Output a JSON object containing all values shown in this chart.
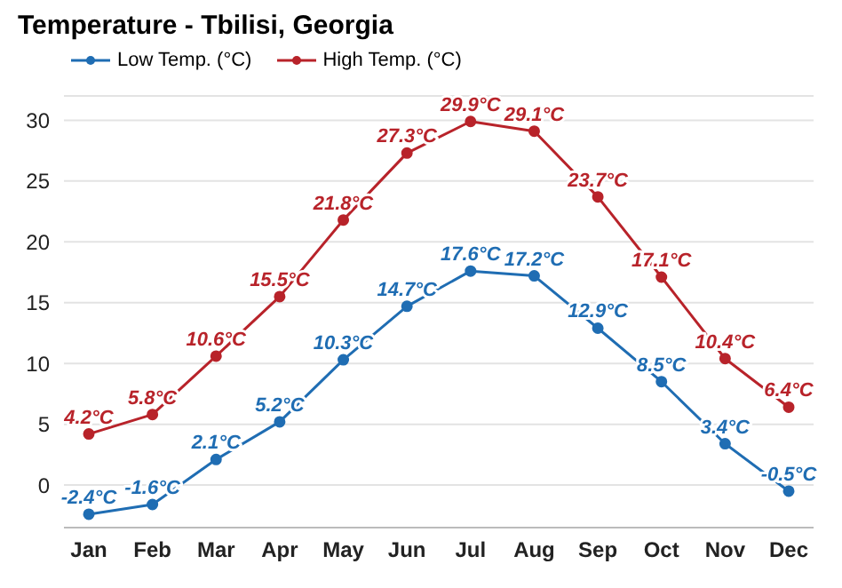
{
  "chart_data": {
    "type": "line",
    "title": "Temperature - Tbilisi, Georgia",
    "categories": [
      "Jan",
      "Feb",
      "Mar",
      "Apr",
      "May",
      "Jun",
      "Jul",
      "Aug",
      "Sep",
      "Oct",
      "Nov",
      "Dec"
    ],
    "series": [
      {
        "name": "Low Temp. (°C)",
        "color": "#1f6db3",
        "values": [
          -2.4,
          -1.6,
          2.1,
          5.2,
          10.3,
          14.7,
          17.6,
          17.2,
          12.9,
          8.5,
          3.4,
          -0.5
        ],
        "value_labels": [
          "-2.4°C",
          "-1.6°C",
          "2.1°C",
          "5.2°C",
          "10.3°C",
          "14.7°C",
          "17.6°C",
          "17.2°C",
          "12.9°C",
          "8.5°C",
          "3.4°C",
          "-0.5°C"
        ]
      },
      {
        "name": "High Temp. (°C)",
        "color": "#b8232a",
        "values": [
          4.2,
          5.8,
          10.6,
          15.5,
          21.8,
          27.3,
          29.9,
          29.1,
          23.7,
          17.1,
          10.4,
          6.4
        ],
        "value_labels": [
          "4.2°C",
          "5.8°C",
          "10.6°C",
          "15.5°C",
          "21.8°C",
          "27.3°C",
          "29.9°C",
          "29.1°C",
          "23.7°C",
          "17.1°C",
          "10.4°C",
          "6.4°C"
        ]
      }
    ],
    "ylim": [
      -3.5,
      32
    ],
    "yticks": [
      0,
      5,
      10,
      15,
      20,
      25,
      30
    ],
    "grid": "y",
    "legend": "top left",
    "marker": "circle",
    "line_style": "solid"
  }
}
